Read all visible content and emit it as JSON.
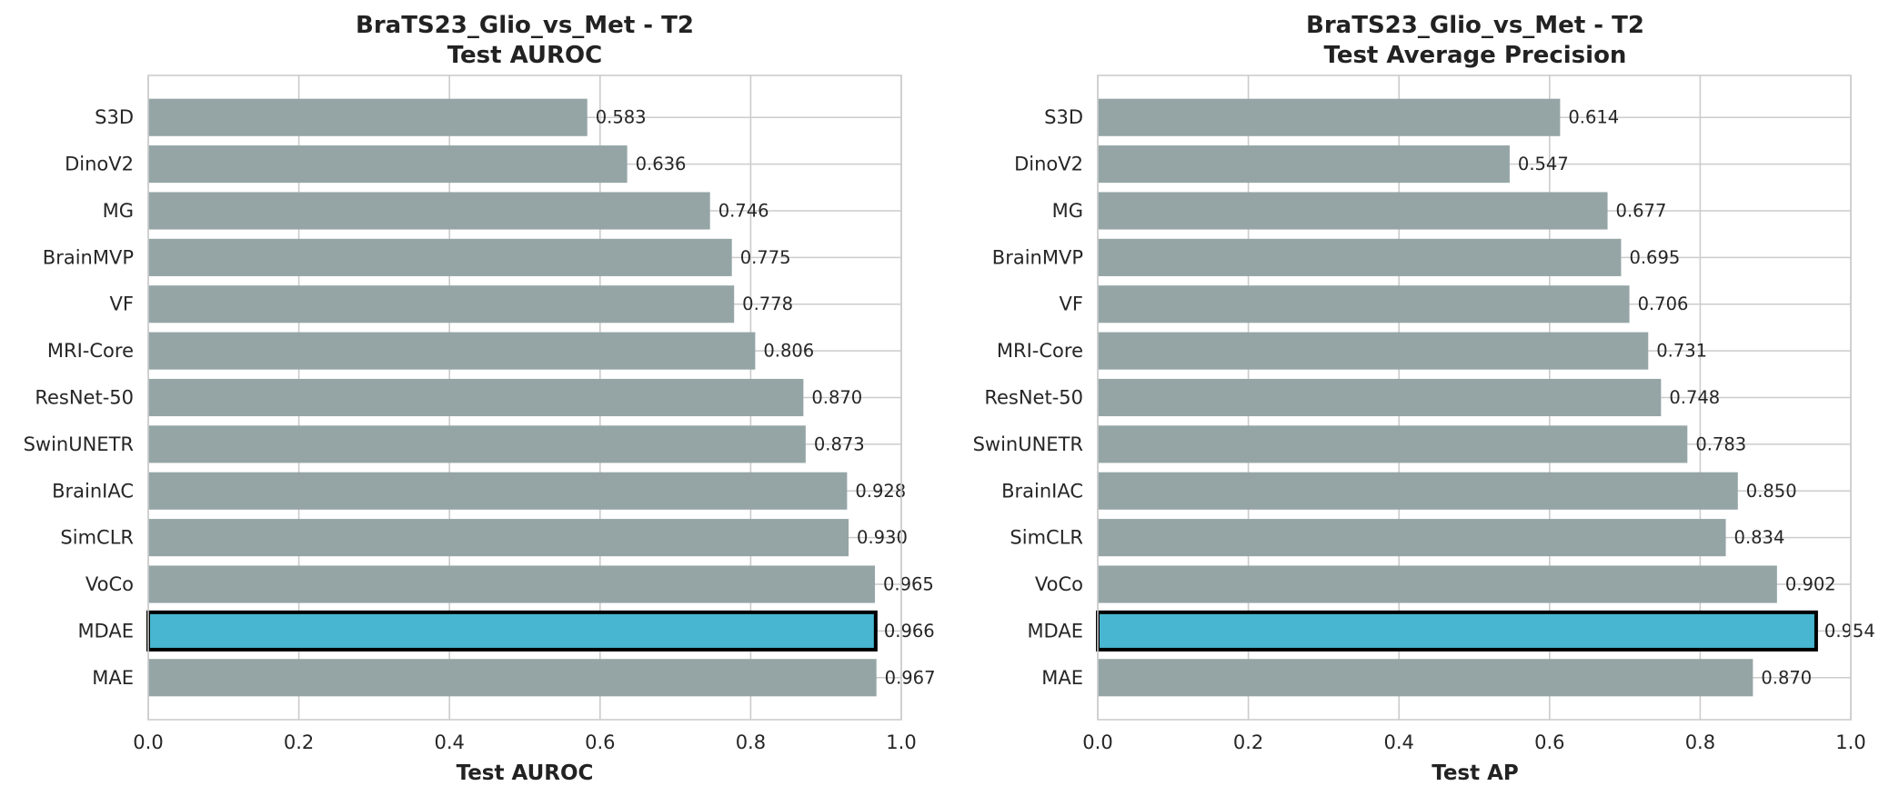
{
  "chart_data": [
    {
      "type": "bar",
      "orientation": "horizontal",
      "title": "BraTS23_Glio_vs_Met - T2",
      "subtitle": "Test AUROC",
      "xlabel": "Test AUROC",
      "ylabel": "",
      "xlim": [
        0.0,
        1.0
      ],
      "xticks": [
        "0.0",
        "0.2",
        "0.4",
        "0.6",
        "0.8",
        "1.0"
      ],
      "grid": true,
      "categories": [
        "S3D",
        "DinoV2",
        "MG",
        "BrainMVP",
        "VF",
        "MRI-Core",
        "ResNet-50",
        "SwinUNETR",
        "BrainIAC",
        "SimCLR",
        "VoCo",
        "MDAE",
        "MAE"
      ],
      "values": [
        0.583,
        0.636,
        0.746,
        0.775,
        0.778,
        0.806,
        0.87,
        0.873,
        0.928,
        0.93,
        0.965,
        0.966,
        0.967
      ],
      "value_labels": [
        "0.583",
        "0.636",
        "0.746",
        "0.775",
        "0.778",
        "0.806",
        "0.870",
        "0.873",
        "0.928",
        "0.930",
        "0.965",
        "0.966",
        "0.967"
      ],
      "highlight": "MDAE"
    },
    {
      "type": "bar",
      "orientation": "horizontal",
      "title": "BraTS23_Glio_vs_Met - T2",
      "subtitle": "Test Average Precision",
      "xlabel": "Test AP",
      "ylabel": "",
      "xlim": [
        0.0,
        1.0
      ],
      "xticks": [
        "0.0",
        "0.2",
        "0.4",
        "0.6",
        "0.8",
        "1.0"
      ],
      "grid": true,
      "categories": [
        "S3D",
        "DinoV2",
        "MG",
        "BrainMVP",
        "VF",
        "MRI-Core",
        "ResNet-50",
        "SwinUNETR",
        "BrainIAC",
        "SimCLR",
        "VoCo",
        "MDAE",
        "MAE"
      ],
      "values": [
        0.614,
        0.547,
        0.677,
        0.695,
        0.706,
        0.731,
        0.748,
        0.783,
        0.85,
        0.834,
        0.902,
        0.954,
        0.87
      ],
      "value_labels": [
        "0.614",
        "0.547",
        "0.677",
        "0.695",
        "0.706",
        "0.731",
        "0.748",
        "0.783",
        "0.850",
        "0.834",
        "0.902",
        "0.954",
        "0.870"
      ],
      "highlight": "MDAE"
    }
  ],
  "colors": {
    "bar": "#95a5a6",
    "highlight_bar": "#48b6d0",
    "highlight_edge": "#000000",
    "grid": "#cccccc"
  }
}
